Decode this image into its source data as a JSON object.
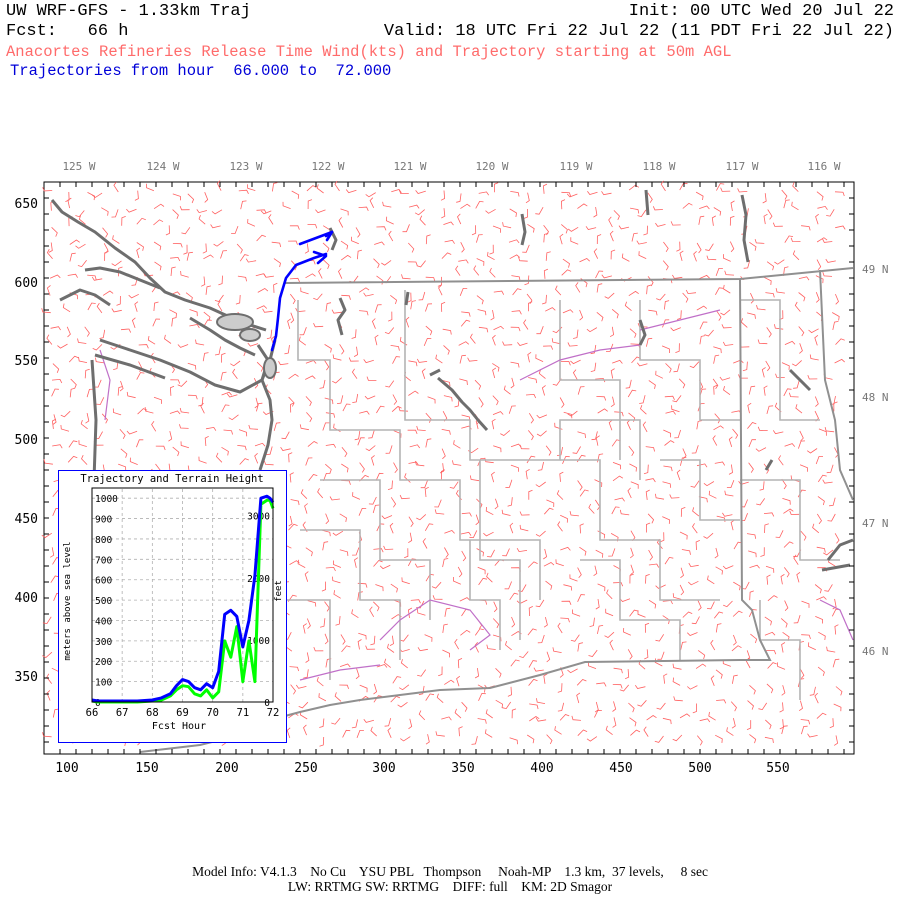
{
  "header": {
    "model": "UW WRF-GFS - 1.33km Traj",
    "init": "Init: 00 UTC Wed 20 Jul 22",
    "fcst": "Fcst:   66 h",
    "valid": "Valid: 18 UTC Fri 22 Jul 22 (11 PDT Fri 22 Jul 22)",
    "field_title": "Anacortes Refineries Release Time Wind(kts) and Trajectory starting at 50m AGL",
    "traj_title": "Trajectories from hour  66.000 to  72.000"
  },
  "map": {
    "top_lon_labels": [
      "125 W",
      "124 W",
      "123 W",
      "122 W",
      "121 W",
      "120 W",
      "119 W",
      "118 W",
      "117 W",
      "116 W"
    ],
    "right_lat_labels": [
      "49 N",
      "48 N",
      "47 N",
      "46 N"
    ],
    "left_grid_labels": [
      "650",
      "600",
      "550",
      "500",
      "450",
      "400",
      "350"
    ],
    "bottom_grid_labels": [
      "100",
      "150",
      "200",
      "250",
      "300",
      "350",
      "400",
      "450",
      "500",
      "550"
    ],
    "colors": {
      "coast": "#707070",
      "borders": "#a8a8a8",
      "counties": "#b8b8b8",
      "rivers": "#c060c0",
      "wind_barbs": "#ff6060",
      "trajectory": "#0000ff"
    }
  },
  "inset": {
    "title": "Trajectory and Terrain Height",
    "ylabel_left": "meters above sea level",
    "ylabel_right": "feet",
    "xlabel": "Fcst Hour",
    "left_ticks": [
      "1000",
      "900",
      "800",
      "700",
      "600",
      "500",
      "400",
      "300",
      "200",
      "100",
      "0"
    ],
    "right_ticks": [
      "3000",
      "2000",
      "1000",
      "0"
    ],
    "x_ticks": [
      "66",
      "67",
      "68",
      "69",
      "70",
      "71",
      "72"
    ],
    "chart_data": {
      "type": "line",
      "xlim": [
        66,
        72
      ],
      "ylim": [
        0,
        1050
      ],
      "x": [
        66.0,
        66.2,
        66.5,
        67.0,
        67.5,
        68.0,
        68.3,
        68.6,
        68.8,
        69.0,
        69.2,
        69.4,
        69.6,
        69.8,
        70.0,
        70.2,
        70.4,
        70.6,
        70.8,
        71.0,
        71.2,
        71.4,
        71.6,
        71.8,
        71.9,
        72.0
      ],
      "series": [
        {
          "color": "#0000ff",
          "values": [
            10,
            5,
            5,
            5,
            5,
            10,
            20,
            40,
            80,
            110,
            100,
            70,
            60,
            90,
            70,
            150,
            430,
            450,
            420,
            270,
            400,
            620,
            1000,
            1010,
            1000,
            980
          ]
        },
        {
          "color": "#00ff00",
          "values": [
            5,
            0,
            0,
            0,
            0,
            5,
            10,
            30,
            60,
            80,
            75,
            40,
            30,
            60,
            20,
            50,
            300,
            220,
            370,
            100,
            300,
            100,
            970,
            990,
            990,
            950
          ]
        }
      ]
    }
  },
  "footer": {
    "line1": "Model Info: V4.1.3    No Cu    YSU PBL   Thompson     Noah-MP    1.3 km,  37 levels,     8 sec",
    "line2": "LW: RRTMG SW: RRTMG    DIFF: full    KM: 2D Smagor"
  }
}
